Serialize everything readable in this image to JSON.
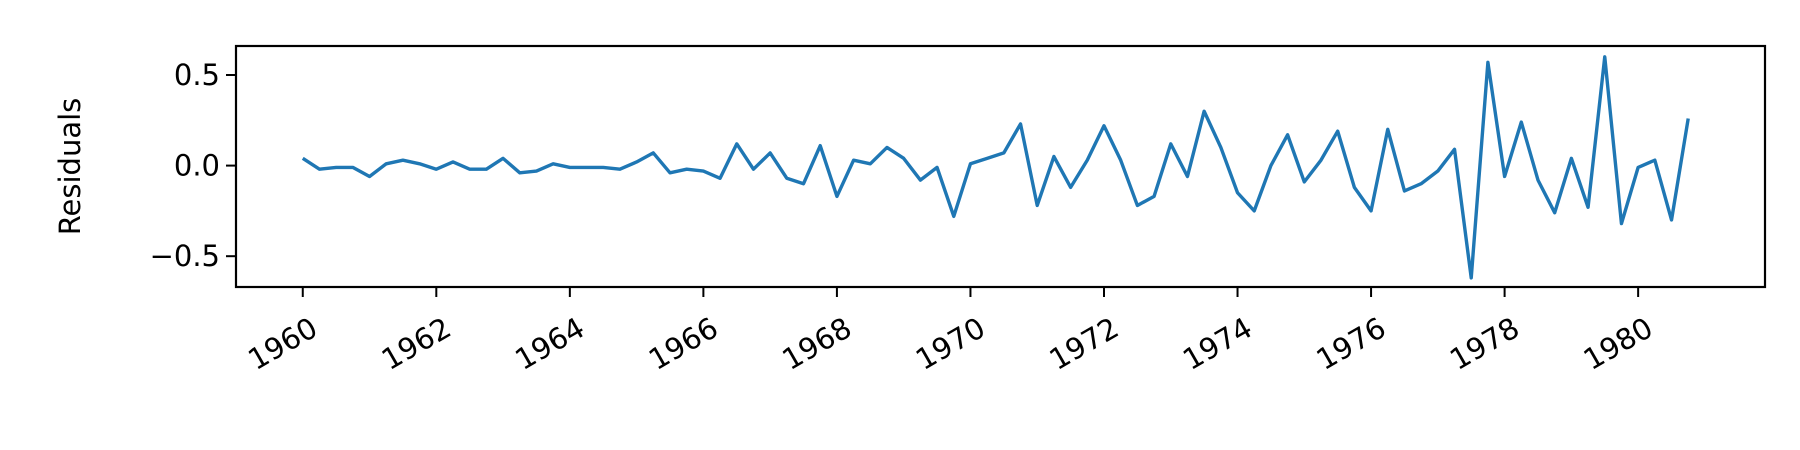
{
  "chart_data": {
    "type": "line",
    "title": "",
    "xlabel": "",
    "ylabel": "Residuals",
    "xlim": [
      1959.0,
      1981.9
    ],
    "ylim": [
      -0.67,
      0.66
    ],
    "xticks": [
      {
        "value": 1960,
        "label": "1960"
      },
      {
        "value": 1962,
        "label": "1962"
      },
      {
        "value": 1964,
        "label": "1964"
      },
      {
        "value": 1966,
        "label": "1966"
      },
      {
        "value": 1968,
        "label": "1968"
      },
      {
        "value": 1970,
        "label": "1970"
      },
      {
        "value": 1972,
        "label": "1972"
      },
      {
        "value": 1974,
        "label": "1974"
      },
      {
        "value": 1976,
        "label": "1976"
      },
      {
        "value": 1978,
        "label": "1978"
      },
      {
        "value": 1980,
        "label": "1980"
      }
    ],
    "yticks": [
      {
        "value": 0.5,
        "label": "0.5"
      },
      {
        "value": 0.0,
        "label": "0.0"
      },
      {
        "value": -0.5,
        "label": "−0.5"
      }
    ],
    "grid": false,
    "series": [
      {
        "color": "#1f77b4",
        "x": [
          1960.0,
          1960.25,
          1960.5,
          1960.75,
          1961.0,
          1961.25,
          1961.5,
          1961.75,
          1962.0,
          1962.25,
          1962.5,
          1962.75,
          1963.0,
          1963.25,
          1963.5,
          1963.75,
          1964.0,
          1964.25,
          1964.5,
          1964.75,
          1965.0,
          1965.25,
          1965.5,
          1965.75,
          1966.0,
          1966.25,
          1966.5,
          1966.75,
          1967.0,
          1967.25,
          1967.5,
          1967.75,
          1968.0,
          1968.25,
          1968.5,
          1968.75,
          1969.0,
          1969.25,
          1969.5,
          1969.75,
          1970.0,
          1970.25,
          1970.5,
          1970.75,
          1971.0,
          1971.25,
          1971.5,
          1971.75,
          1972.0,
          1972.25,
          1972.5,
          1972.75,
          1973.0,
          1973.25,
          1973.5,
          1973.75,
          1974.0,
          1974.25,
          1974.5,
          1974.75,
          1975.0,
          1975.25,
          1975.5,
          1975.75,
          1976.0,
          1976.25,
          1976.5,
          1976.75,
          1977.0,
          1977.25,
          1977.5,
          1977.75,
          1978.0,
          1978.25,
          1978.5,
          1978.75,
          1979.0,
          1979.25,
          1979.5,
          1979.75,
          1980.0,
          1980.25,
          1980.5,
          1980.75
        ],
        "y": [
          0.04,
          -0.02,
          -0.01,
          -0.01,
          -0.06,
          0.01,
          0.03,
          0.01,
          -0.02,
          0.02,
          -0.02,
          -0.02,
          0.04,
          -0.04,
          -0.03,
          0.01,
          -0.01,
          -0.01,
          -0.01,
          -0.02,
          0.02,
          0.07,
          -0.04,
          -0.02,
          -0.03,
          -0.07,
          0.12,
          -0.02,
          0.07,
          -0.07,
          -0.1,
          0.11,
          -0.17,
          0.03,
          0.01,
          0.1,
          0.04,
          -0.08,
          -0.01,
          -0.28,
          0.01,
          0.04,
          0.07,
          0.23,
          -0.22,
          0.05,
          -0.12,
          0.03,
          0.22,
          0.03,
          -0.22,
          -0.17,
          0.12,
          -0.06,
          0.3,
          0.1,
          -0.15,
          -0.25,
          0.0,
          0.17,
          -0.09,
          0.03,
          0.19,
          -0.12,
          -0.25,
          0.2,
          -0.14,
          -0.1,
          -0.03,
          0.09,
          -0.62,
          0.57,
          -0.06,
          0.24,
          -0.08,
          -0.26,
          0.04,
          -0.23,
          0.6,
          -0.32,
          -0.01,
          0.03,
          -0.3,
          0.26
        ]
      }
    ]
  }
}
